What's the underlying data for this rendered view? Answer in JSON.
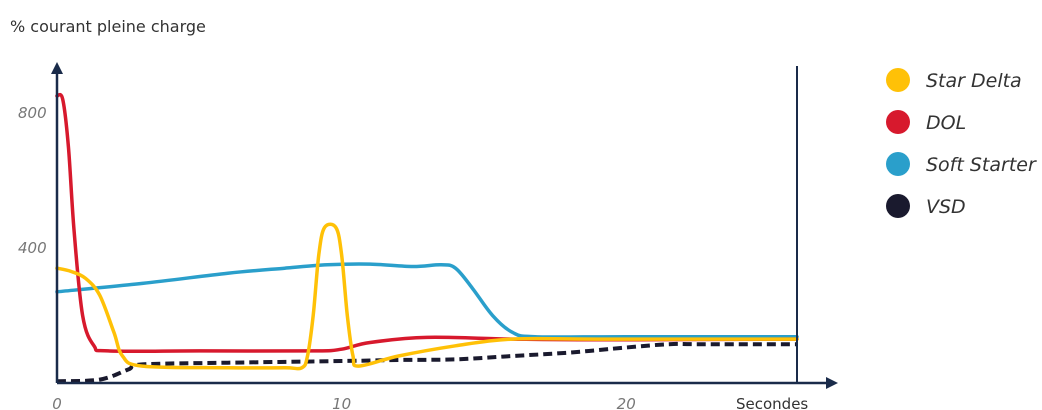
{
  "chart_data": {
    "type": "line",
    "ylabel": "% courant pleine charge",
    "xlabel": "Secondes",
    "xlim": [
      0,
      26
    ],
    "ylim": [
      0,
      900
    ],
    "x_ticks": [
      0,
      10,
      20
    ],
    "y_ticks": [
      400,
      800
    ],
    "legend_position": "right",
    "series": [
      {
        "name": "Star Delta",
        "color": "#FFC107",
        "style": "solid",
        "points": [
          [
            0,
            340
          ],
          [
            0.5,
            330
          ],
          [
            1,
            310
          ],
          [
            1.5,
            260
          ],
          [
            2,
            150
          ],
          [
            2.3,
            80
          ],
          [
            3,
            50
          ],
          [
            6,
            45
          ],
          [
            8,
            45
          ],
          [
            8.6,
            45
          ],
          [
            8.8,
            80
          ],
          [
            9,
            200
          ],
          [
            9.2,
            380
          ],
          [
            9.4,
            460
          ],
          [
            9.8,
            460
          ],
          [
            10,
            380
          ],
          [
            10.2,
            200
          ],
          [
            10.4,
            80
          ],
          [
            10.6,
            50
          ],
          [
            12,
            80
          ],
          [
            14,
            110
          ],
          [
            16,
            130
          ],
          [
            19,
            130
          ],
          [
            26,
            130
          ]
        ]
      },
      {
        "name": "DOL",
        "color": "#D7192D",
        "style": "solid",
        "points": [
          [
            0,
            850
          ],
          [
            0.2,
            840
          ],
          [
            0.4,
            700
          ],
          [
            0.6,
            450
          ],
          [
            0.9,
            200
          ],
          [
            1.3,
            110
          ],
          [
            1.8,
            95
          ],
          [
            5,
            95
          ],
          [
            9,
            95
          ],
          [
            10,
            100
          ],
          [
            11,
            120
          ],
          [
            13,
            135
          ],
          [
            16,
            130
          ],
          [
            19,
            128
          ],
          [
            26,
            130
          ]
        ]
      },
      {
        "name": "Soft Starter",
        "color": "#2A9FCB",
        "style": "solid",
        "points": [
          [
            0,
            270
          ],
          [
            3,
            295
          ],
          [
            6,
            325
          ],
          [
            8,
            340
          ],
          [
            9.5,
            350
          ],
          [
            11,
            352
          ],
          [
            12.5,
            345
          ],
          [
            13.5,
            350
          ],
          [
            14,
            340
          ],
          [
            14.6,
            280
          ],
          [
            15.3,
            200
          ],
          [
            16,
            150
          ],
          [
            16.8,
            137
          ],
          [
            20,
            137
          ],
          [
            26,
            137
          ]
        ]
      },
      {
        "name": "VSD",
        "color": "#1A1A2E",
        "style": "dashed",
        "points": [
          [
            0,
            5
          ],
          [
            1.5,
            10
          ],
          [
            2.5,
            40
          ],
          [
            3,
            55
          ],
          [
            6,
            60
          ],
          [
            10,
            65
          ],
          [
            12,
            68
          ],
          [
            14,
            70
          ],
          [
            16,
            80
          ],
          [
            18,
            90
          ],
          [
            20,
            105
          ],
          [
            21.5,
            115
          ],
          [
            22.5,
            115
          ],
          [
            26,
            115
          ]
        ]
      }
    ]
  }
}
